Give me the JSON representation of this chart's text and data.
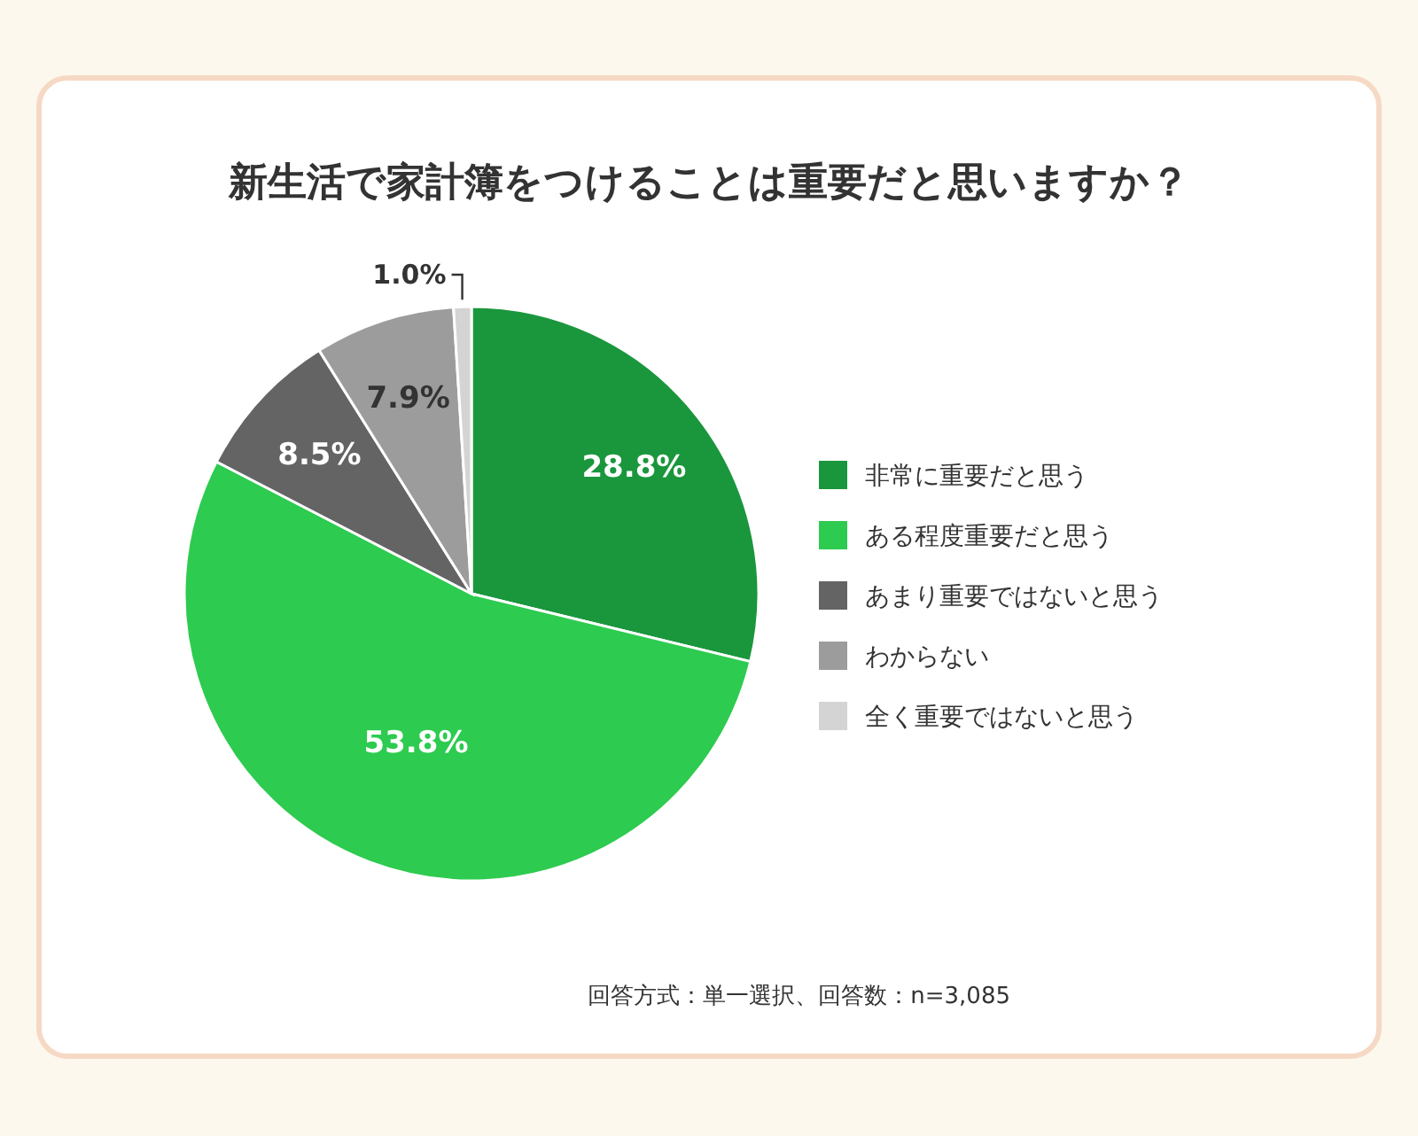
{
  "chart_data": {
    "type": "pie",
    "title": "新生活で家計簿をつけることは重要だと思いますか？",
    "categories": [
      "非常に重要だと思う",
      "ある程度重要だと思う",
      "あまり重要ではないと思う",
      "わからない",
      "全く重要ではないと思う"
    ],
    "values": [
      28.8,
      53.8,
      8.5,
      7.9,
      1.0
    ],
    "value_labels": [
      "28.8%",
      "53.8%",
      "8.5%",
      "7.9%",
      "1.0%"
    ],
    "colors": [
      "#1a963c",
      "#2dcb4f",
      "#646464",
      "#9c9c9c",
      "#d4d4d4"
    ],
    "legend": "right",
    "annotations": [
      "回答方式：単一選択、回答数：n=3,085"
    ]
  }
}
